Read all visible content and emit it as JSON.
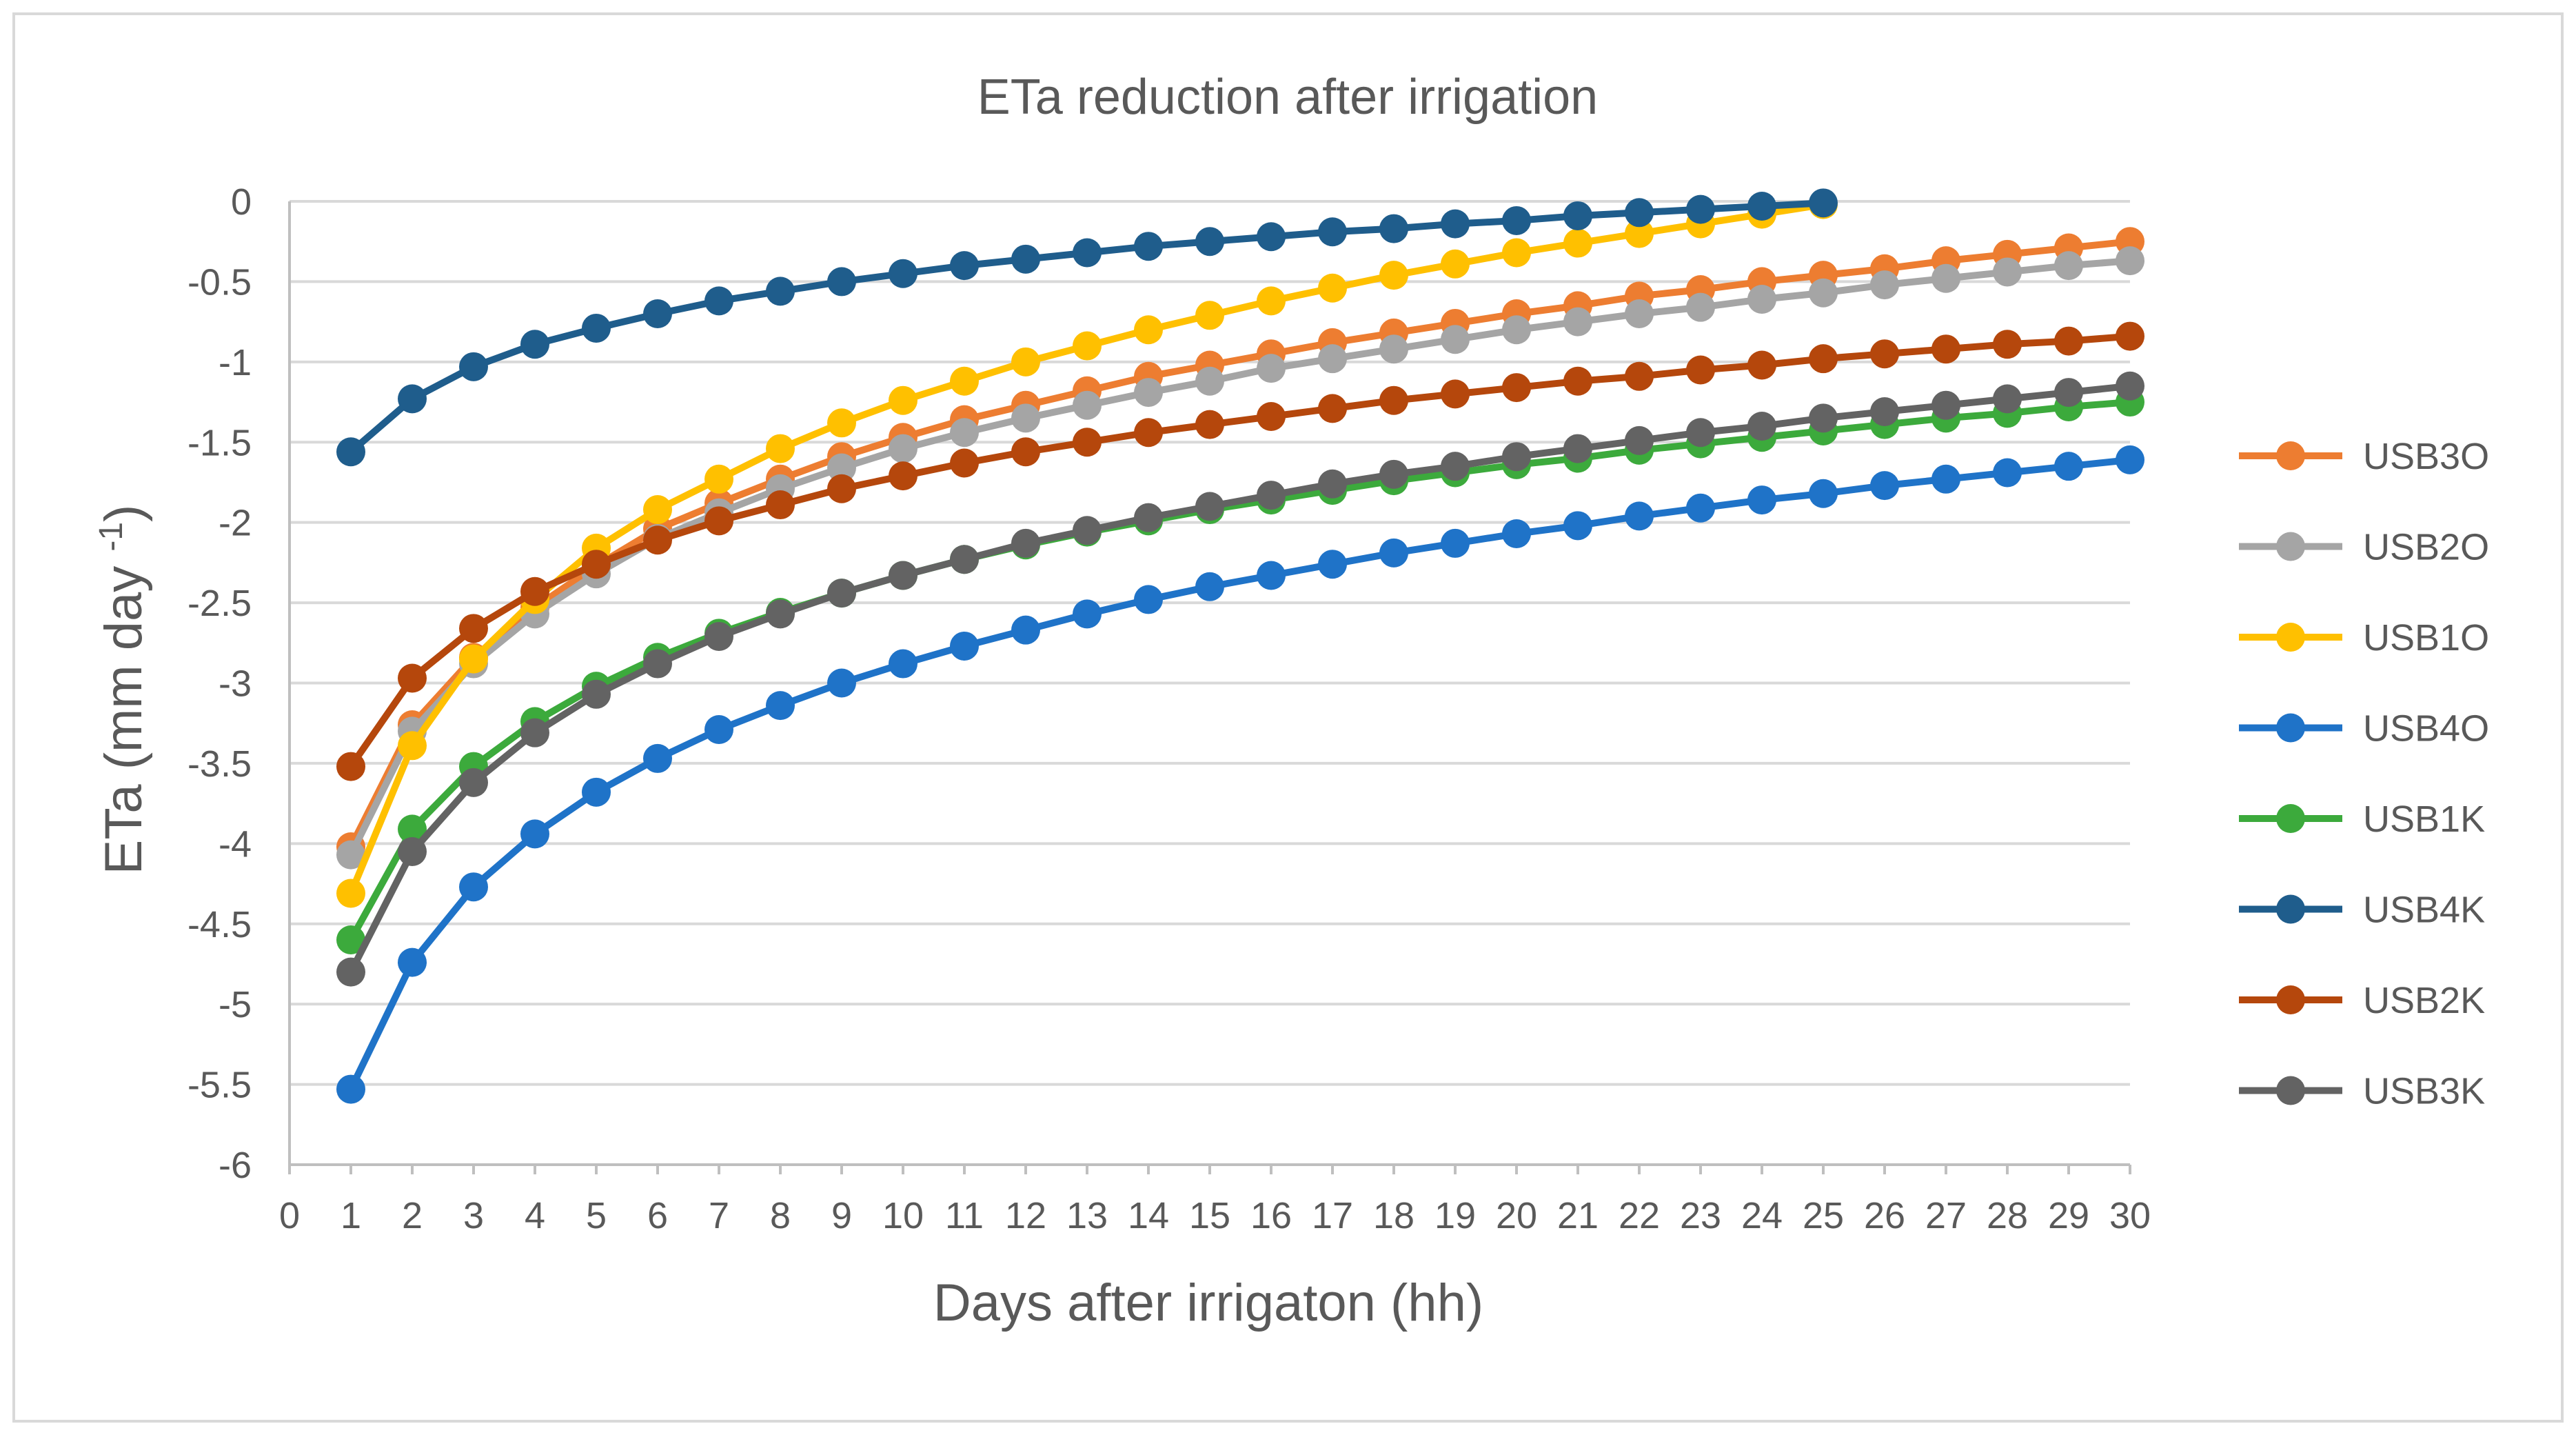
{
  "chart_data": {
    "type": "line",
    "title": "ETa reduction after irrigation",
    "xlabel": "Days after irrigaton (hh)",
    "ylabel_main": "ETa (mm day ",
    "ylabel_sup": "-1",
    "ylabel_tail": ")",
    "xlim": [
      0,
      30
    ],
    "ylim": [
      -6,
      0
    ],
    "x_ticks": [
      0,
      1,
      2,
      3,
      4,
      5,
      6,
      7,
      8,
      9,
      10,
      11,
      12,
      13,
      14,
      15,
      16,
      17,
      18,
      19,
      20,
      21,
      22,
      23,
      24,
      25,
      26,
      27,
      28,
      29,
      30
    ],
    "y_ticks": [
      0,
      -0.5,
      -1,
      -1.5,
      -2,
      -2.5,
      -3,
      -3.5,
      -4,
      -4.5,
      -5,
      -5.5,
      -6
    ],
    "grid": true,
    "legend_position": "right",
    "series": [
      {
        "name": "USB3O",
        "color": "#ED7D31",
        "x": [
          1,
          2,
          3,
          4,
          5,
          6,
          7,
          8,
          9,
          10,
          11,
          12,
          13,
          14,
          15,
          16,
          17,
          18,
          19,
          20,
          21,
          22,
          23,
          24,
          25,
          26,
          27,
          28,
          29,
          30
        ],
        "values": [
          -4.02,
          -3.26,
          -2.84,
          -2.53,
          -2.27,
          -2.04,
          -1.88,
          -1.73,
          -1.59,
          -1.47,
          -1.36,
          -1.27,
          -1.18,
          -1.09,
          -1.02,
          -0.95,
          -0.88,
          -0.82,
          -0.76,
          -0.7,
          -0.65,
          -0.59,
          -0.55,
          -0.5,
          -0.46,
          -0.42,
          -0.37,
          -0.33,
          -0.29,
          -0.25
        ]
      },
      {
        "name": "USB2O",
        "color": "#A5A5A5",
        "x": [
          1,
          2,
          3,
          4,
          5,
          6,
          7,
          8,
          9,
          10,
          11,
          12,
          13,
          14,
          15,
          16,
          17,
          18,
          19,
          20,
          21,
          22,
          23,
          24,
          25,
          26,
          27,
          28,
          29,
          30
        ],
        "values": [
          -4.07,
          -3.3,
          -2.88,
          -2.57,
          -2.32,
          -2.1,
          -1.94,
          -1.79,
          -1.66,
          -1.54,
          -1.44,
          -1.35,
          -1.27,
          -1.19,
          -1.12,
          -1.04,
          -0.98,
          -0.92,
          -0.86,
          -0.8,
          -0.75,
          -0.7,
          -0.66,
          -0.61,
          -0.57,
          -0.52,
          -0.48,
          -0.44,
          -0.4,
          -0.37
        ]
      },
      {
        "name": "USB1O",
        "color": "#FFC000",
        "x": [
          1,
          2,
          3,
          4,
          5,
          6,
          7,
          8,
          9,
          10,
          11,
          12,
          13,
          14,
          15,
          16,
          17,
          18,
          19,
          20,
          21,
          22,
          23,
          24,
          25
        ],
        "values": [
          -4.31,
          -3.39,
          -2.85,
          -2.48,
          -2.16,
          -1.92,
          -1.73,
          -1.54,
          -1.38,
          -1.24,
          -1.12,
          -1.0,
          -0.9,
          -0.8,
          -0.71,
          -0.62,
          -0.54,
          -0.46,
          -0.39,
          -0.32,
          -0.26,
          -0.2,
          -0.14,
          -0.08,
          -0.02
        ]
      },
      {
        "name": "USB4O",
        "color": "#1F73C8",
        "x": [
          1,
          2,
          3,
          4,
          5,
          6,
          7,
          8,
          9,
          10,
          11,
          12,
          13,
          14,
          15,
          16,
          17,
          18,
          19,
          20,
          21,
          22,
          23,
          24,
          25,
          26,
          27,
          28,
          29,
          30
        ],
        "values": [
          -5.53,
          -4.74,
          -4.27,
          -3.94,
          -3.68,
          -3.47,
          -3.29,
          -3.14,
          -3.0,
          -2.88,
          -2.77,
          -2.67,
          -2.57,
          -2.48,
          -2.4,
          -2.33,
          -2.26,
          -2.19,
          -2.13,
          -2.07,
          -2.02,
          -1.96,
          -1.91,
          -1.86,
          -1.82,
          -1.77,
          -1.73,
          -1.69,
          -1.65,
          -1.61
        ]
      },
      {
        "name": "USB1K",
        "color": "#3CAA3C",
        "x": [
          1,
          2,
          3,
          4,
          5,
          6,
          7,
          8,
          9,
          10,
          11,
          12,
          13,
          14,
          15,
          16,
          17,
          18,
          19,
          20,
          21,
          22,
          23,
          24,
          25,
          26,
          27,
          28,
          29,
          30
        ],
        "values": [
          -4.6,
          -3.91,
          -3.52,
          -3.24,
          -3.02,
          -2.84,
          -2.69,
          -2.56,
          -2.44,
          -2.33,
          -2.23,
          -2.14,
          -2.06,
          -1.99,
          -1.92,
          -1.86,
          -1.8,
          -1.74,
          -1.69,
          -1.64,
          -1.6,
          -1.55,
          -1.51,
          -1.47,
          -1.43,
          -1.39,
          -1.35,
          -1.32,
          -1.28,
          -1.25
        ]
      },
      {
        "name": "USB4K",
        "color": "#1F5D8C",
        "x": [
          1,
          2,
          3,
          4,
          5,
          6,
          7,
          8,
          9,
          10,
          11,
          12,
          13,
          14,
          15,
          16,
          17,
          18,
          19,
          20,
          21,
          22,
          23,
          24,
          25
        ],
        "values": [
          -1.56,
          -1.23,
          -1.03,
          -0.89,
          -0.79,
          -0.7,
          -0.62,
          -0.56,
          -0.5,
          -0.45,
          -0.4,
          -0.36,
          -0.32,
          -0.28,
          -0.25,
          -0.22,
          -0.19,
          -0.17,
          -0.14,
          -0.12,
          -0.09,
          -0.07,
          -0.05,
          -0.03,
          -0.01
        ]
      },
      {
        "name": "USB2K",
        "color": "#B5470C",
        "x": [
          1,
          2,
          3,
          4,
          5,
          6,
          7,
          8,
          9,
          10,
          11,
          12,
          13,
          14,
          15,
          16,
          17,
          18,
          19,
          20,
          21,
          22,
          23,
          24,
          25,
          26,
          27,
          28,
          29,
          30
        ],
        "values": [
          -3.52,
          -2.97,
          -2.66,
          -2.43,
          -2.26,
          -2.11,
          -1.99,
          -1.89,
          -1.79,
          -1.71,
          -1.63,
          -1.56,
          -1.5,
          -1.44,
          -1.39,
          -1.34,
          -1.29,
          -1.24,
          -1.2,
          -1.16,
          -1.12,
          -1.09,
          -1.05,
          -1.02,
          -0.98,
          -0.95,
          -0.92,
          -0.89,
          -0.87,
          -0.84
        ]
      },
      {
        "name": "USB3K",
        "color": "#636363",
        "x": [
          1,
          2,
          3,
          4,
          5,
          6,
          7,
          8,
          9,
          10,
          11,
          12,
          13,
          14,
          15,
          16,
          17,
          18,
          19,
          20,
          21,
          22,
          23,
          24,
          25,
          26,
          27,
          28,
          29,
          30
        ],
        "values": [
          -4.8,
          -4.05,
          -3.62,
          -3.31,
          -3.07,
          -2.88,
          -2.71,
          -2.57,
          -2.44,
          -2.33,
          -2.23,
          -2.13,
          -2.05,
          -1.97,
          -1.9,
          -1.83,
          -1.76,
          -1.7,
          -1.65,
          -1.59,
          -1.54,
          -1.49,
          -1.44,
          -1.4,
          -1.35,
          -1.31,
          -1.27,
          -1.23,
          -1.19,
          -1.15
        ]
      }
    ]
  }
}
